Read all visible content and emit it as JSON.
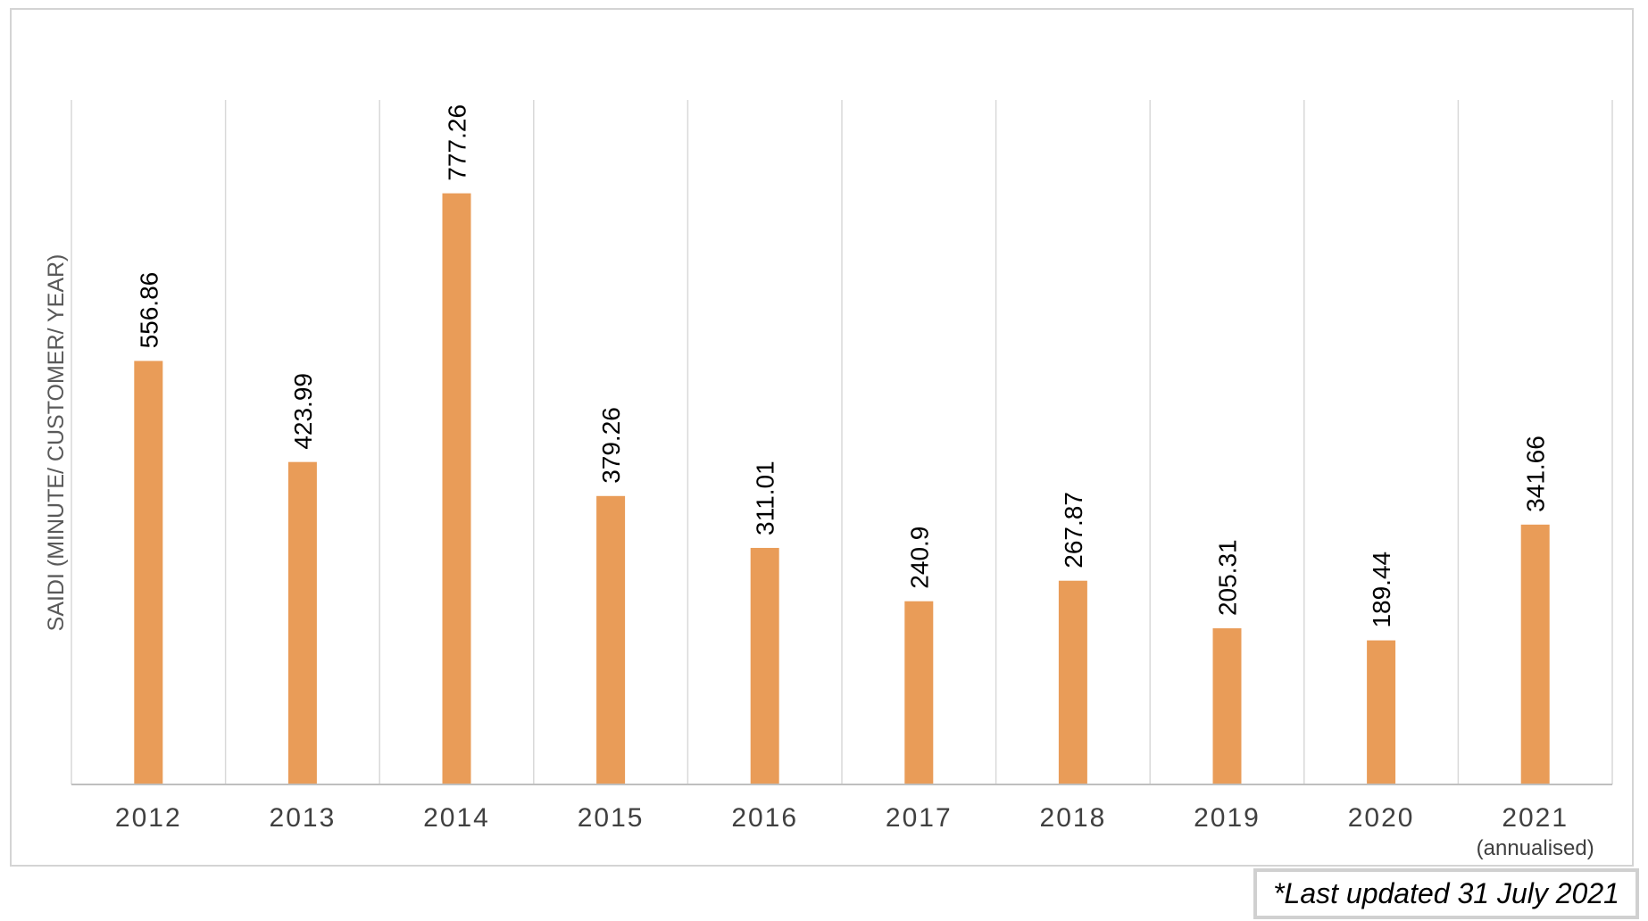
{
  "chart_data": {
    "type": "bar",
    "ylabel": "SAIDI (MINUTE/ CUSTOMER/ YEAR)",
    "categories": [
      "2012",
      "2013",
      "2014",
      "2015",
      "2016",
      "2017",
      "2018",
      "2019",
      "2020",
      "2021"
    ],
    "category_sublabels": [
      "",
      "",
      "",
      "",
      "",
      "",
      "",
      "",
      "",
      "(annualised)"
    ],
    "values": [
      556.86,
      423.99,
      777.26,
      379.26,
      311.01,
      240.9,
      267.87,
      205.31,
      189.44,
      341.66
    ],
    "data_labels": [
      "556.86",
      "423.99",
      "777.26",
      "379.26",
      "311.01",
      "240.9",
      "267.87",
      "205.31",
      "189.44",
      "341.66"
    ],
    "bar_color": "#E99C58",
    "ylim": [
      0,
      900
    ],
    "grid": "vertical category separators",
    "legend": "none"
  },
  "footnote": "*Last updated 31 July 2021"
}
